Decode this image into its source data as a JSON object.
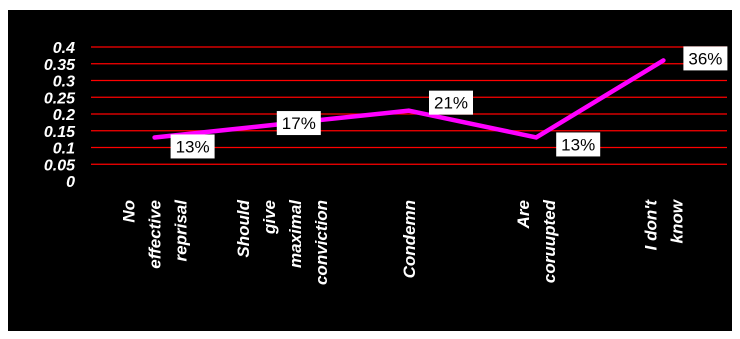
{
  "chart_data": {
    "type": "line",
    "categories": [
      [
        "No",
        "effective",
        "reprisal"
      ],
      [
        "Should",
        "give",
        "maximal",
        "conviction"
      ],
      [
        "Condemn"
      ],
      [
        "Are",
        "coruupted"
      ],
      [
        "I don't",
        "know"
      ]
    ],
    "values": [
      0.13,
      0.17,
      0.21,
      0.13,
      0.36
    ],
    "data_labels": [
      "13%",
      "17%",
      "21%",
      "13%",
      "36%"
    ],
    "ylim": [
      0,
      0.4
    ],
    "yticks": [
      "0",
      "0.05",
      "0.1",
      "0.15",
      "0.2",
      "0.25",
      "0.3",
      "0.35",
      "0.4"
    ],
    "title": "",
    "xlabel": "",
    "ylabel": "",
    "grid": true,
    "legend": "none",
    "colors": {
      "background": "#000000",
      "gridline": "#ff0000",
      "line": "#ff00ff",
      "label_box": "#ffffff",
      "tick_text": "#ffffff"
    }
  }
}
